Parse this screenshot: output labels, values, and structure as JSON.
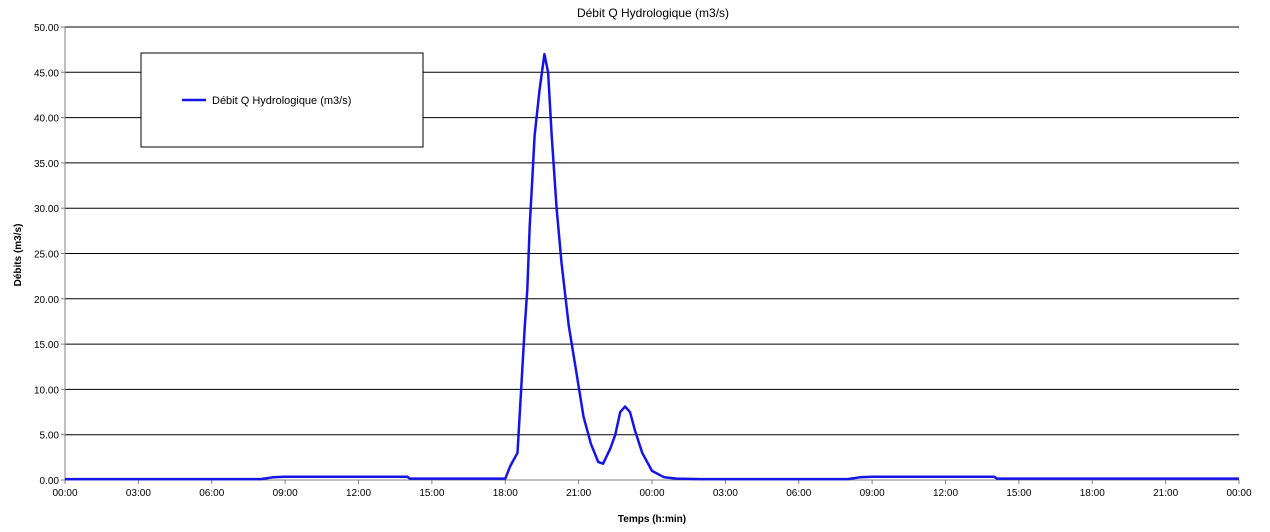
{
  "chart_data": {
    "type": "line",
    "title": "Débit Q Hydrologique  (m3/s)",
    "xlabel": "Temps (h:min)",
    "ylabel": "Débits (m3/s)",
    "x_unit": "hours",
    "xlim": [
      0,
      48
    ],
    "ylim": [
      0,
      50
    ],
    "y_ticks": [
      "0.00",
      "5.00",
      "10.00",
      "15.00",
      "20.00",
      "25.00",
      "30.00",
      "35.00",
      "40.00",
      "45.00",
      "50.00"
    ],
    "x_ticks": [
      "00:00",
      "03:00",
      "06:00",
      "09:00",
      "12:00",
      "15:00",
      "18:00",
      "21:00",
      "00:00",
      "03:00",
      "06:00",
      "09:00",
      "12:00",
      "15:00",
      "18:00",
      "21:00",
      "00:00"
    ],
    "grid": "horizontal",
    "legend_position": "top-left",
    "colors": {
      "series": "#1414e6",
      "grid": "#000000",
      "axis": "#808080"
    },
    "series": [
      {
        "name": "Débit Q Hydrologique  (m3/s)",
        "x": [
          0,
          8,
          8.5,
          9,
          14,
          14.1,
          18,
          18.2,
          18.5,
          18.8,
          18.9,
          19.0,
          19.1,
          19.2,
          19.4,
          19.6,
          19.75,
          19.9,
          20.1,
          20.3,
          20.6,
          20.9,
          21.2,
          21.5,
          21.8,
          22.0,
          22.3,
          22.5,
          22.7,
          22.9,
          23.1,
          23.3,
          23.6,
          24.0,
          24.5,
          25.0,
          26,
          32,
          32.5,
          33,
          38,
          38.1,
          48
        ],
        "values": [
          0.1,
          0.1,
          0.3,
          0.35,
          0.35,
          0.15,
          0.15,
          1.5,
          3.0,
          17.0,
          21.0,
          28.0,
          33.0,
          38.0,
          43.0,
          47.0,
          45.0,
          38.0,
          30.0,
          24.0,
          17.0,
          12.0,
          7.0,
          4.0,
          2.0,
          1.8,
          3.5,
          5.0,
          7.5,
          8.1,
          7.5,
          5.5,
          3.0,
          1.0,
          0.3,
          0.15,
          0.1,
          0.1,
          0.3,
          0.35,
          0.35,
          0.15,
          0.15
        ]
      }
    ]
  }
}
